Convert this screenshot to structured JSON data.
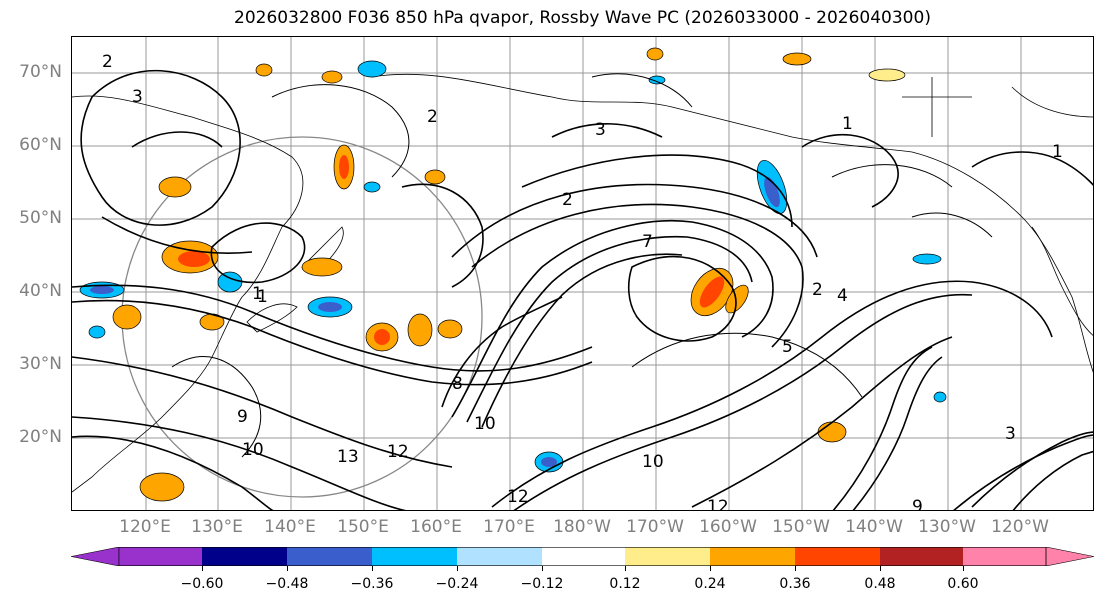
{
  "title": "2026032800 F036 850 hPa qvapor, Rossby Wave PC (2026033000 - 2026040300)",
  "lat_labels": [
    "70°N",
    "60°N",
    "50°N",
    "40°N",
    "30°N",
    "20°N"
  ],
  "lon_labels": [
    "120°E",
    "130°E",
    "140°E",
    "150°E",
    "160°E",
    "170°E",
    "180°W",
    "170°W",
    "160°W",
    "150°W",
    "140°W",
    "130°W",
    "120°W"
  ],
  "colorbar": {
    "colors": [
      "#9932CC",
      "#00008B",
      "#3A5FCD",
      "#00BFFF",
      "#B0E2FF",
      "#FFFFFF",
      "#FFEC8B",
      "#FFA500",
      "#FF4500",
      "#B22222",
      "#FF82AB"
    ],
    "tick_labels": [
      "−0.60",
      "−0.48",
      "−0.36",
      "−0.24",
      "−0.12",
      "0.12",
      "0.24",
      "0.36",
      "0.48",
      "0.60"
    ]
  },
  "contour_labels": [
    "2",
    "3",
    "2",
    "3",
    "1",
    "2",
    "7",
    "1",
    "2",
    "4",
    "5",
    "1",
    "10",
    "8",
    "12",
    "13",
    "9",
    "10",
    "12",
    "10",
    "3",
    "9",
    "12",
    "1"
  ]
}
